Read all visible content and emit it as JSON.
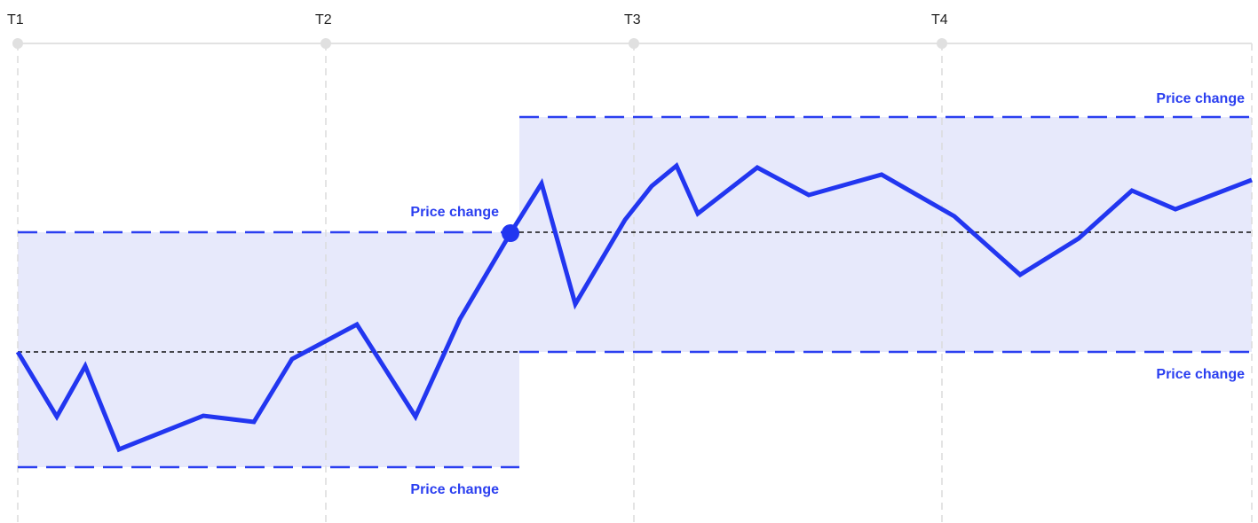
{
  "timeline": {
    "labels": [
      "T1",
      "T2",
      "T3",
      "T4"
    ]
  },
  "bands": [
    {
      "upper_label": "Price change",
      "lower_label": "Price change"
    },
    {
      "upper_label": "Price change",
      "lower_label": "Price change"
    }
  ]
}
